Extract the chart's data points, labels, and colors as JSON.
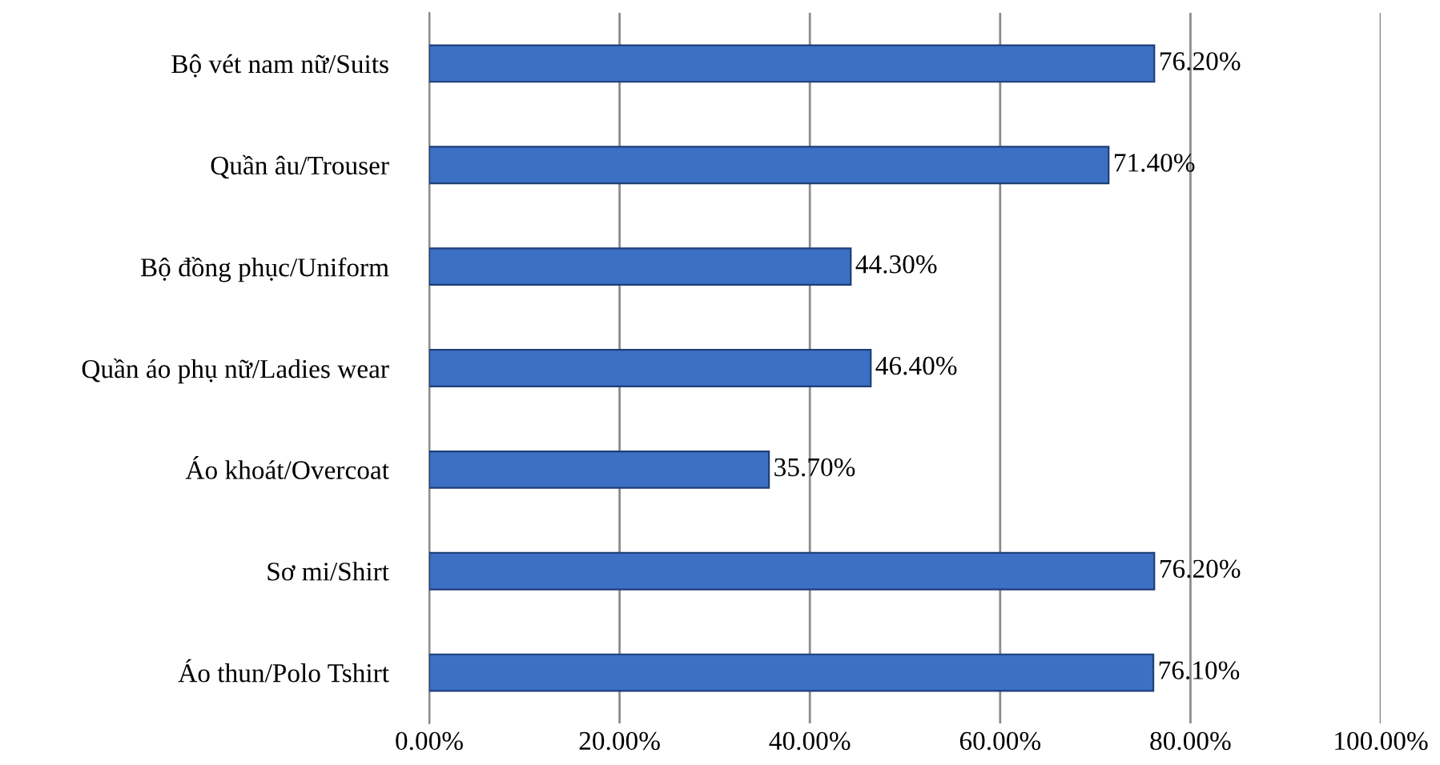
{
  "chart_data": {
    "type": "bar",
    "orientation": "horizontal",
    "categories": [
      "Bộ vét nam nữ/Suits",
      "Quần âu/Trouser",
      "Bộ đồng phục/Uniform",
      "Quần áo phụ nữ/Ladies wear",
      "Áo khoát/Overcoat",
      "Sơ mi/Shirt",
      "Áo thun/Polo Tshirt"
    ],
    "values": [
      76.2,
      71.4,
      44.3,
      46.4,
      35.7,
      76.2,
      76.1
    ],
    "value_labels": [
      "76.20%",
      "71.40%",
      "44.30%",
      "46.40%",
      "35.70%",
      "76.20%",
      "76.10%"
    ],
    "color": "#3c70c4",
    "xlim": [
      0,
      100
    ],
    "xticks": [
      {
        "value": 0,
        "label": "0.00%"
      },
      {
        "value": 20,
        "label": "20.00%"
      },
      {
        "value": 40,
        "label": "40.00%"
      },
      {
        "value": 60,
        "label": "60.00%"
      },
      {
        "value": 80,
        "label": "80.00%"
      },
      {
        "value": 100,
        "label": "100.00%"
      }
    ],
    "grid": "x"
  }
}
